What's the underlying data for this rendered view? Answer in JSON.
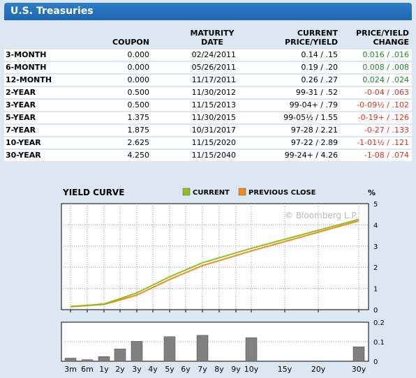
{
  "header": {
    "title": "U.S. Treasuries"
  },
  "table": {
    "columns": [
      "",
      "COUPON",
      "MATURITY DATE",
      "CURRENT PRICE/YIELD",
      "PRICE/YIELD CHANGE"
    ],
    "rows": [
      {
        "term": "3-MONTH",
        "coupon": "0.000",
        "maturity": "02/24/2011",
        "price_yield": "0.14 / .15",
        "change": "0.016 / .016",
        "direction": "up"
      },
      {
        "term": "6-MONTH",
        "coupon": "0.000",
        "maturity": "05/26/2011",
        "price_yield": "0.19 / .20",
        "change": "0.008 / .008",
        "direction": "up"
      },
      {
        "term": "12-MONTH",
        "coupon": "0.000",
        "maturity": "11/17/2011",
        "price_yield": "0.26 / .27",
        "change": "0.024 / .024",
        "direction": "up"
      },
      {
        "term": "2-YEAR",
        "coupon": "0.500",
        "maturity": "11/30/2012",
        "price_yield": "99-31 / .52",
        "change": "-0-04 / .063",
        "direction": "down"
      },
      {
        "term": "3-YEAR",
        "coupon": "0.500",
        "maturity": "11/15/2013",
        "price_yield": "99-04+ / .79",
        "change": "-0-09½ / .102",
        "direction": "down"
      },
      {
        "term": "5-YEAR",
        "coupon": "1.375",
        "maturity": "11/30/2015",
        "price_yield": "99-05½ / 1.55",
        "change": "-0-19+ / .126",
        "direction": "down"
      },
      {
        "term": "7-YEAR",
        "coupon": "1.875",
        "maturity": "10/31/2017",
        "price_yield": "97-28 / 2.21",
        "change": "-0-27 / .133",
        "direction": "down"
      },
      {
        "term": "10-YEAR",
        "coupon": "2.625",
        "maturity": "11/15/2020",
        "price_yield": "97-22 / 2.89",
        "change": "-1-01½ / .121",
        "direction": "down"
      },
      {
        "term": "30-YEAR",
        "coupon": "4.250",
        "maturity": "11/15/2040",
        "price_yield": "99-24+ / 4.26",
        "change": "-1-08 / .074",
        "direction": "down"
      }
    ]
  },
  "colors": {
    "header_blue": "#1e66b3",
    "positive": "#1b8a2e",
    "negative": "#e0301e",
    "current": "#8cc11f",
    "previous": "#f08c1c",
    "bar": "#808080"
  },
  "chart_data": [
    {
      "type": "line",
      "title": "YIELD CURVE",
      "ylabel": "%",
      "ylim": [
        0,
        5
      ],
      "yticks": [
        "0",
        "1",
        "2",
        "3",
        "4",
        "5"
      ],
      "watermark": "© Bloomberg L.P.",
      "legend_position": "top",
      "x_label_positions": [
        "3m",
        "6m",
        "1y",
        "2y",
        "3y",
        "4y",
        "5y",
        "6y",
        "7y",
        "8y",
        "9y",
        "10y",
        "15y",
        "20y",
        "30y"
      ],
      "x": [
        "3m",
        "6m",
        "1y",
        "2y",
        "3y",
        "5y",
        "7y",
        "10y",
        "30y"
      ],
      "series": [
        {
          "name": "CURRENT",
          "values": [
            0.15,
            0.2,
            0.27,
            0.52,
            0.79,
            1.55,
            2.21,
            2.89,
            4.26
          ]
        },
        {
          "name": "PREVIOUS CLOSE",
          "values": [
            0.134,
            0.192,
            0.246,
            0.457,
            0.688,
            1.424,
            2.077,
            2.769,
            4.186
          ]
        }
      ]
    },
    {
      "type": "bar",
      "ylim": [
        0,
        0.2
      ],
      "yticks": [
        "0",
        "0.1",
        "0.2"
      ],
      "categories": [
        "3m",
        "6m",
        "1y",
        "2y",
        "3y",
        "5y",
        "7y",
        "10y",
        "30y"
      ],
      "values": [
        0.016,
        0.008,
        0.024,
        0.063,
        0.102,
        0.126,
        0.133,
        0.121,
        0.074
      ]
    }
  ]
}
